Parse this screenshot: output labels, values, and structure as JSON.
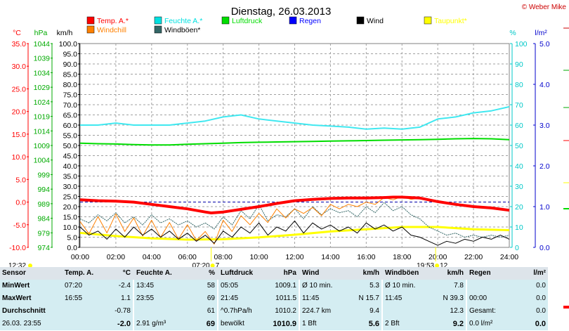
{
  "chart_data": {
    "type": "line",
    "title": "Dienstag, 26.03.2013",
    "credit": "© Weber Mike",
    "x_ticks": [
      "00:00",
      "02:00",
      "04:00",
      "06:00",
      "08:00",
      "10:00",
      "12:00",
      "14:00",
      "16:00",
      "18:00",
      "20:00",
      "22:00",
      "24:00"
    ],
    "axes": {
      "temp": {
        "unit": "°C",
        "color": "#ff0000",
        "min": -10,
        "max": 35,
        "ticks": [
          "35.0",
          "30.0",
          "25.0",
          "20.0",
          "15.0",
          "10.0",
          "5.0",
          "0.0",
          "-5.0",
          "-10.0"
        ]
      },
      "press": {
        "unit": "hPa",
        "color": "#00aa00",
        "min": 974,
        "max": 1044,
        "ticks": [
          "1044",
          "1039",
          "1034",
          "1029",
          "1024",
          "1019",
          "1014",
          "1009",
          "1004",
          "999",
          "994",
          "989",
          "984",
          "979",
          "974"
        ]
      },
      "wind": {
        "unit": "km/h",
        "color": "#000000",
        "min": 0,
        "max": 100,
        "ticks": [
          "100.0",
          "95.0",
          "90.0",
          "85.0",
          "80.0",
          "75.0",
          "70.0",
          "65.0",
          "60.0",
          "55.0",
          "50.0",
          "45.0",
          "40.0",
          "35.0",
          "30.0",
          "25.0",
          "20.0",
          "15.0",
          "10.0",
          "5.0",
          "0.0"
        ]
      },
      "hum": {
        "unit": "%",
        "color": "#00c8c8",
        "min": 0,
        "max": 100,
        "ticks": [
          "100",
          "90",
          "80",
          "70",
          "60",
          "50",
          "40",
          "30",
          "20",
          "10",
          "0"
        ]
      },
      "rain": {
        "unit": "l/m²",
        "color": "#0000cc",
        "min": 0,
        "max": 5,
        "ticks": [
          "5.0",
          "4.0",
          "3.0",
          "2.0",
          "1.0",
          "0.0"
        ]
      }
    },
    "legend": [
      {
        "label": "Temp. A.*",
        "color": "#ff0000"
      },
      {
        "label": "Feuchte A.*",
        "color": "#00e0e0"
      },
      {
        "label": "Luftdruck",
        "color": "#00dd00"
      },
      {
        "label": "Regen",
        "color": "#0000ff"
      },
      {
        "label": "Wind",
        "color": "#000000"
      },
      {
        "label": "Taupunkt*",
        "color": "#ffff00"
      },
      {
        "label": "Windchill",
        "color": "#ff8000"
      },
      {
        "label": "Windböen*",
        "color": "#336666"
      }
    ],
    "series": [
      {
        "name": "Temp. A.*",
        "axis": "temp",
        "color": "#ff0000",
        "x": [
          0,
          1,
          2,
          3,
          4,
          5,
          6,
          7,
          7.33,
          8,
          9,
          10,
          11,
          12,
          13,
          14,
          15,
          16,
          17,
          17.5,
          18,
          19,
          20,
          21,
          22,
          23,
          24
        ],
        "y": [
          0.5,
          0.3,
          0.2,
          0,
          -0.5,
          -1,
          -1.5,
          -2.2,
          -2.4,
          -2.2,
          -1.6,
          -1,
          -0.3,
          0.3,
          0.6,
          0.8,
          0.9,
          0.9,
          1,
          1.1,
          1.1,
          0.9,
          0.1,
          -0.5,
          -1,
          -1.3,
          -1.8
        ]
      },
      {
        "name": "Feuchte A.*",
        "axis": "hum",
        "color": "#40e8f0",
        "x": [
          0,
          1,
          2,
          3,
          4,
          5,
          6,
          7,
          8,
          9,
          10,
          11,
          12,
          13,
          14,
          15,
          16,
          17,
          18,
          19,
          20,
          21,
          22,
          23,
          24
        ],
        "y": [
          60,
          60,
          61,
          60,
          60,
          60,
          61,
          62,
          64,
          65,
          63,
          62,
          61,
          60,
          59.5,
          59,
          58,
          58.5,
          58,
          59,
          63,
          64,
          66,
          67,
          69
        ]
      },
      {
        "name": "Luftdruck",
        "axis": "press",
        "color": "#00dd00",
        "x": [
          0,
          1,
          2,
          3,
          4,
          5,
          6,
          7,
          8,
          9,
          10,
          11,
          12,
          13,
          14,
          15,
          16,
          17,
          18,
          19,
          20,
          21,
          22,
          23,
          24
        ],
        "y": [
          1009.8,
          1009.6,
          1009.5,
          1009.3,
          1009.2,
          1009.2,
          1009.4,
          1009.6,
          1009.8,
          1010,
          1010.1,
          1010.2,
          1010.3,
          1010.4,
          1010.5,
          1010.6,
          1010.7,
          1010.8,
          1010.9,
          1011.0,
          1011.1,
          1011.3,
          1011.4,
          1011.3,
          1011.0
        ]
      },
      {
        "name": "Taupunkt*",
        "axis": "temp",
        "color": "#ffff00",
        "x": [
          0,
          2,
          4,
          6,
          8,
          10,
          12,
          14,
          16,
          18,
          20,
          22,
          24
        ],
        "y": [
          -6.8,
          -7.5,
          -8,
          -8.3,
          -8.2,
          -7.8,
          -7.2,
          -6.5,
          -6,
          -5.5,
          -5.5,
          -6,
          -6.2
        ]
      },
      {
        "name": "Windchill",
        "axis": "temp",
        "color": "#ff8000",
        "x": [
          0,
          0.5,
          1,
          1.5,
          2,
          2.5,
          3,
          3.5,
          4,
          4.5,
          5,
          5.5,
          6,
          6.5,
          7,
          7.5,
          8,
          8.5,
          9,
          9.5,
          10,
          10.5,
          11,
          11.5,
          12,
          12.5,
          13,
          13.5,
          14,
          14.5,
          15,
          15.5,
          16,
          16.5,
          17,
          17.5,
          18,
          18.5,
          19,
          19.5,
          20,
          20.5,
          21,
          21.5,
          22,
          22.5,
          23,
          23.5,
          24
        ],
        "y": [
          -4.3,
          -7,
          -3.2,
          -6.8,
          -2.6,
          -6.5,
          -3.5,
          -7.5,
          -4,
          -7.8,
          -4.5,
          -8.2,
          -5,
          -8.5,
          -6.5,
          -9.3,
          -4,
          -6.5,
          -3,
          -5,
          -2.5,
          -4.5,
          -1.5,
          -3.5,
          -1.5,
          -2.5,
          -1.2,
          -3,
          -0.5,
          -1.5,
          -0.5,
          -1,
          0,
          -0.5,
          1,
          0.5,
          1.2,
          0.6,
          0.9,
          0.3,
          0,
          -0.3,
          -0.6,
          -0.8,
          -1.1,
          -1.3,
          -1.5,
          -1.6,
          -1.8
        ]
      },
      {
        "name": "Windböen*",
        "axis": "wind",
        "color": "#336666",
        "x": [
          0,
          0.5,
          1,
          1.5,
          2,
          2.5,
          3,
          3.5,
          4,
          4.5,
          5,
          5.5,
          6,
          6.5,
          7,
          7.5,
          8,
          8.5,
          9,
          9.5,
          10,
          10.5,
          11,
          11.5,
          12,
          12.5,
          13,
          13.5,
          14,
          14.5,
          15,
          15.5,
          16,
          16.5,
          17,
          17.5,
          18,
          18.5,
          19,
          19.5,
          20,
          20.5,
          21,
          21.5,
          22,
          22.5,
          23,
          23.5,
          24
        ],
        "y": [
          14,
          12,
          16,
          13,
          17,
          12,
          15,
          11,
          16,
          12,
          14,
          11,
          13,
          10,
          12,
          9,
          15,
          11,
          18,
          14,
          21,
          13,
          16,
          15,
          19,
          14,
          20,
          16,
          19,
          17,
          18,
          15,
          20,
          17,
          22,
          18,
          20,
          16,
          14,
          10,
          8,
          6,
          7,
          5,
          6,
          5,
          6,
          5,
          6
        ]
      },
      {
        "name": "Wind",
        "axis": "wind",
        "color": "#000000",
        "x": [
          0,
          0.5,
          1,
          1.5,
          2,
          2.5,
          3,
          3.5,
          4,
          4.5,
          5,
          5.5,
          6,
          6.5,
          7,
          7.5,
          8,
          8.5,
          9,
          9.5,
          10,
          10.5,
          11,
          11.5,
          12,
          12.5,
          13,
          13.5,
          14,
          14.5,
          15,
          15.5,
          16,
          16.5,
          17,
          17.5,
          18,
          18.5,
          19,
          19.5,
          20,
          20.5,
          21,
          21.5,
          22,
          22.5,
          23,
          23.5,
          24
        ],
        "y": [
          10,
          6,
          8,
          4,
          9,
          5,
          10,
          6,
          9,
          5,
          8,
          4,
          7,
          3,
          6,
          2,
          8,
          5,
          10,
          7,
          12,
          6,
          10,
          8,
          13,
          7,
          12,
          9,
          11,
          8,
          10,
          7,
          12,
          9,
          11,
          8,
          10,
          6,
          5,
          3,
          1,
          3,
          2,
          4,
          3,
          5,
          4,
          6,
          4
        ]
      }
    ],
    "reference_lines": [
      {
        "axis": "temp",
        "value": 0,
        "color": "#0000aa",
        "style": "dashed"
      }
    ],
    "markers": [
      {
        "x": 7.33,
        "label": "07:20",
        "value": "7"
      },
      {
        "x": 19.88,
        "label": "19:53",
        "value": "12"
      }
    ],
    "timestamp": "12:32"
  },
  "stats": {
    "header": [
      "Sensor",
      "Temp. A.",
      "°C",
      "Feuchte A.",
      "%",
      "Luftdruck",
      "hPa",
      "Wind",
      "km/h",
      "Windböen",
      "km/h",
      "Regen",
      "l/m²"
    ],
    "rows": [
      [
        "MinWert",
        "07:20",
        "-2.4",
        "13:45",
        "58",
        "05:05",
        "1009.1",
        "Ø 10 min.",
        "5.3",
        "Ø 10 min.",
        "7.8",
        "",
        "0.0"
      ],
      [
        "MaxWert",
        "16:55",
        "1.1",
        "23:55",
        "69",
        "21:45",
        "1011.5",
        "11:45",
        "N 15.7",
        "11:45",
        "N 39.3",
        "00:00",
        "0.0"
      ],
      [
        "Durchschnitt",
        "",
        "-0.78",
        "",
        "61",
        "^0.7hPa/h",
        "1010.2",
        "224.7 km",
        "9.4",
        "",
        "12.3",
        "Gesamt:",
        "0.0"
      ],
      [
        "26.03. 23:55",
        "",
        "-2.0",
        "2.91 g/m³",
        "69",
        "bewölkt",
        "1010.9",
        "1 Bft",
        "5.6",
        "2 Bft",
        "9.2",
        "0.0 l/m²",
        "0.0"
      ]
    ]
  }
}
